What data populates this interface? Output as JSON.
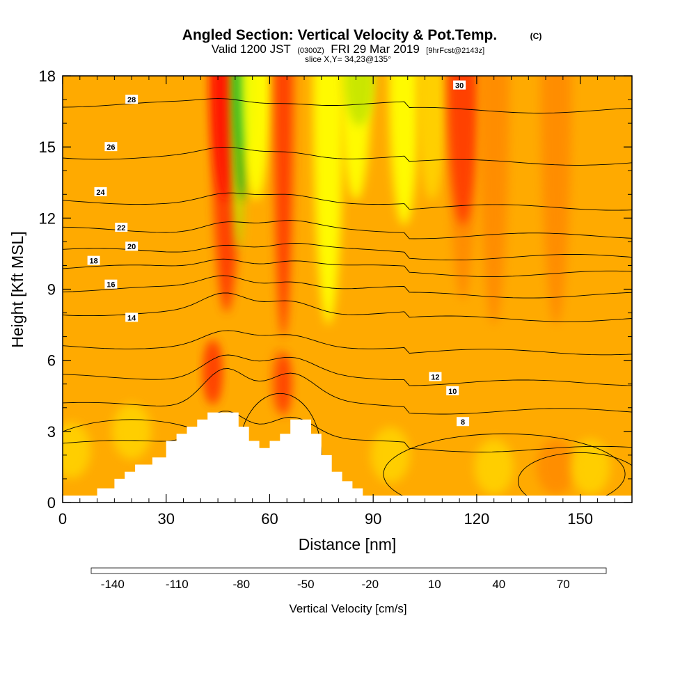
{
  "chart_data": {
    "type": "heatmap",
    "title": "Angled Section: Vertical Velocity & Pot.Temp.",
    "title_units": "(C)",
    "subtitle": {
      "valid_prefix": "Valid 1200 JST",
      "valid_zulu": "(0300Z)",
      "valid_date": "FRI 29 Mar 2019",
      "forecast": "[9hrFcst@2143z]"
    },
    "slice_info": "slice X,Y= 34,23@135°",
    "xlabel": "Distance [nm]",
    "ylabel": "Height [Kft MSL]",
    "xlim": [
      0,
      165
    ],
    "ylim": [
      0,
      18
    ],
    "x_ticks": [
      "0",
      "30",
      "60",
      "90",
      "120",
      "150"
    ],
    "y_ticks": [
      "0",
      "3",
      "6",
      "9",
      "12",
      "15",
      "18"
    ],
    "colorbar": {
      "label": "Vertical Velocity [cm/s]",
      "tick_labels": [
        "-140",
        "-110",
        "-80",
        "-50",
        "-20",
        "10",
        "40",
        "70"
      ],
      "colors": [
        "#0000ff",
        "#0c3cff",
        "#0a78ff",
        "#00a8ff",
        "#00d2f5",
        "#00e6c8",
        "#00d08c",
        "#00b43c",
        "#2da81e",
        "#7ccc14",
        "#c8e600",
        "#ffff00",
        "#ffd200",
        "#ffbe00",
        "#ffaa00",
        "#ff8c00",
        "#ff6400",
        "#ff3c00",
        "#ff1400",
        "#e6001e",
        "#c8003c",
        "#a0005a",
        "#800078",
        "#5a0090"
      ]
    },
    "velocity_columns": [
      {
        "x": 47.5,
        "ylow": 8.5,
        "color": "#ff3c00"
      },
      {
        "x": 47.5,
        "ylow": 13,
        "color": "#ff1400"
      },
      {
        "x": 51,
        "ylow": 11,
        "color": "#c8e600"
      },
      {
        "x": 52,
        "ylow": 13,
        "color": "#2da81e"
      },
      {
        "x": 53,
        "ylow": 15,
        "color": "#00b43c"
      },
      {
        "x": 56,
        "ylow": 13,
        "color": "#ffff00"
      },
      {
        "x": 64,
        "ylow": 7.5,
        "color": "#ff3c00"
      },
      {
        "x": 77,
        "ylow": 8,
        "color": "#ffff00"
      },
      {
        "x": 85,
        "ylow": 13,
        "color": "#ffff00"
      },
      {
        "x": 86,
        "ylow": 16,
        "color": "#c8e600"
      },
      {
        "x": 99,
        "ylow": 12,
        "color": "#ffff00"
      },
      {
        "x": 107,
        "ylow": 13,
        "color": "#ffd200"
      },
      {
        "x": 116,
        "ylow": 9,
        "color": "#ff8c00"
      },
      {
        "x": 116,
        "ylow": 12,
        "color": "#ff3c00"
      },
      {
        "x": 125,
        "ylow": 8,
        "color": "#ff8c00"
      },
      {
        "x": 143,
        "ylow": 8,
        "color": "#ff8c00"
      }
    ],
    "velocity_blobs": [
      {
        "x": 43.5,
        "y": 5.5,
        "color": "#ff6400"
      },
      {
        "x": 43.5,
        "y": 5.5,
        "color": "#ff3c00"
      },
      {
        "x": 62.5,
        "y": 5.2,
        "color": "#ff8c00"
      },
      {
        "x": 64,
        "y": 5,
        "color": "#ff3c00"
      },
      {
        "x": 2.5,
        "y": 2.2,
        "color": "#ffd200"
      },
      {
        "x": 20,
        "y": 3,
        "color": "#ffd200"
      },
      {
        "x": 125,
        "y": 1.5,
        "color": "#ffd200"
      },
      {
        "x": 143,
        "y": 1.5,
        "color": "#ff8c00"
      },
      {
        "x": 153,
        "y": 1.5,
        "color": "#ffd200"
      },
      {
        "x": 95,
        "y": 2,
        "color": "#ffd200"
      }
    ],
    "terrain": {
      "x": [
        10,
        10,
        15,
        15,
        18,
        18,
        21,
        21,
        26,
        26,
        30,
        30,
        33,
        33,
        36,
        36,
        39,
        39,
        42,
        42,
        51,
        51,
        54,
        54,
        57,
        57,
        60,
        60,
        63,
        63,
        66,
        66,
        72,
        72,
        75,
        75,
        78,
        78,
        81,
        81,
        84,
        84,
        87,
        87
      ],
      "y": [
        0,
        0.6,
        0.6,
        1.0,
        1.0,
        1.3,
        1.3,
        1.6,
        1.6,
        1.9,
        1.9,
        2.6,
        2.6,
        2.9,
        2.9,
        3.2,
        3.2,
        3.5,
        3.5,
        3.8,
        3.8,
        3.2,
        3.2,
        2.6,
        2.6,
        2.3,
        2.3,
        2.6,
        2.6,
        2.9,
        2.9,
        3.5,
        3.5,
        2.9,
        2.9,
        2.0,
        2.0,
        1.3,
        1.3,
        0.9,
        0.9,
        0.6,
        0.6,
        0
      ]
    },
    "isentropes": [
      {
        "label": "8",
        "base": 2.5,
        "dip": 1.6,
        "label_at": [
          116,
          3.4
        ]
      },
      {
        "label": "10",
        "base": 4.1,
        "dip": 1.8,
        "label_at": [
          113,
          4.7
        ]
      },
      {
        "label": "12",
        "base": 5.3,
        "dip": 1.0,
        "label_at": [
          108,
          5.3
        ]
      },
      {
        "label": "14",
        "base": 6.6,
        "dip": 0.6,
        "label_at": [
          20,
          7.8
        ]
      },
      {
        "label": "16",
        "base": 8.0,
        "dip": 0.8,
        "label_at": [
          14,
          9.2
        ]
      },
      {
        "label": "18",
        "base": 9.0,
        "dip": 0.6,
        "label_at": [
          9,
          10.2
        ]
      },
      {
        "label": "20",
        "base": 9.9,
        "dip": 0.5,
        "label_at": [
          20,
          10.8
        ]
      },
      {
        "label": "22",
        "base": 10.6,
        "dip": 0.4,
        "label_at": [
          17,
          11.6
        ]
      },
      {
        "label": "24",
        "base": 11.5,
        "dip": 0.4,
        "label_at": [
          11,
          13.1
        ]
      },
      {
        "label": "26",
        "base": 12.7,
        "dip": 0.3,
        "label_at": [
          14,
          15.0
        ]
      },
      {
        "label": "28",
        "base": 14.6,
        "dip": 0.3,
        "label_at": [
          20,
          17.0
        ]
      },
      {
        "label": "30",
        "base": 16.8,
        "dip": 0.2,
        "label_at": [
          115,
          17.6
        ]
      }
    ]
  }
}
